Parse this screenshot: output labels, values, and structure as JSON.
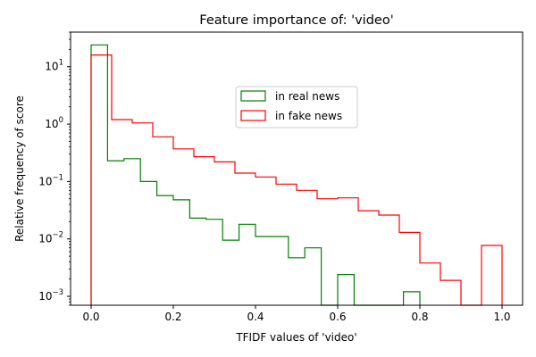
{
  "chart_data": {
    "type": "histogram",
    "title": "Feature importance of: 'video'",
    "xlabel": "TFIDF values of 'video'",
    "ylabel": "Relative frequency of score",
    "xlim": [
      -0.05,
      1.05
    ],
    "ylim": [
      0.0007,
      40
    ],
    "yscale": "log",
    "x_ticks": [
      {
        "value": 0.0,
        "label": "0.0"
      },
      {
        "value": 0.2,
        "label": "0.2"
      },
      {
        "value": 0.4,
        "label": "0.4"
      },
      {
        "value": 0.6,
        "label": "0.6"
      },
      {
        "value": 0.8,
        "label": "0.8"
      },
      {
        "value": 1.0,
        "label": "1.0"
      }
    ],
    "y_ticks": [
      {
        "value": 10,
        "base": "10",
        "exp": "1"
      },
      {
        "value": 1,
        "base": "10",
        "exp": "0"
      },
      {
        "value": 0.1,
        "base": "10",
        "exp": "−1"
      },
      {
        "value": 0.01,
        "base": "10",
        "exp": "−2"
      },
      {
        "value": 0.001,
        "base": "10",
        "exp": "−3"
      }
    ],
    "grid": false,
    "legend": {
      "position": "upper-center"
    },
    "series": [
      {
        "name": "in real news",
        "color": "#008000",
        "edges": [
          0.0,
          0.04,
          0.08,
          0.12,
          0.16,
          0.2,
          0.24,
          0.28,
          0.32,
          0.36,
          0.4,
          0.44,
          0.48,
          0.52,
          0.56,
          0.6,
          0.64,
          0.68,
          0.72,
          0.76,
          0.8
        ],
        "values": [
          24,
          0.23,
          0.25,
          0.1,
          0.057,
          0.048,
          0.023,
          0.022,
          0.0095,
          0.018,
          0.011,
          0.011,
          0.0047,
          0.007,
          0,
          0.0024,
          0,
          0,
          0,
          0.0012
        ]
      },
      {
        "name": "in fake news",
        "color": "#ff0000",
        "edges": [
          0.0,
          0.05,
          0.1,
          0.15,
          0.2,
          0.25,
          0.3,
          0.35,
          0.4,
          0.45,
          0.5,
          0.55,
          0.6,
          0.65,
          0.7,
          0.75,
          0.8,
          0.85,
          0.9,
          0.95,
          1.0
        ],
        "values": [
          16,
          1.2,
          1.05,
          0.6,
          0.37,
          0.27,
          0.22,
          0.14,
          0.12,
          0.09,
          0.07,
          0.05,
          0.052,
          0.031,
          0.026,
          0.013,
          0.0038,
          0.0019,
          0,
          0.0077
        ]
      }
    ]
  }
}
